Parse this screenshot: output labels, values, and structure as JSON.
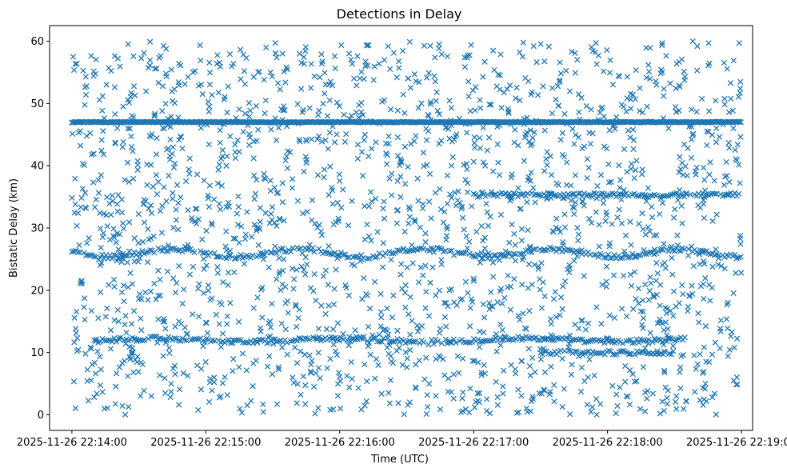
{
  "chart_data": {
    "type": "scatter",
    "title": "Detections in Delay",
    "xlabel": "Time (UTC)",
    "ylabel": "Bistatic Delay (km)",
    "marker": "x",
    "color": "#1f77b4",
    "grid": false,
    "x_ticks": [
      "2025-11-26 22:14:00",
      "2025-11-26 22:15:00",
      "2025-11-26 22:16:00",
      "2025-11-26 22:17:00",
      "2025-11-26 22:18:00",
      "2025-11-26 22:19:00"
    ],
    "y_ticks": [
      0,
      10,
      20,
      30,
      40,
      50,
      60
    ],
    "xlim": [
      "2025-11-26 22:13:50",
      "2025-11-26 22:19:05"
    ],
    "ylim": [
      -2.5,
      62.5
    ],
    "data_x_range": [
      "2025-11-26 22:14:00",
      "2025-11-26 22:19:00"
    ],
    "tracks": [
      {
        "delay_km": 47.0,
        "from": "2025-11-26 22:14:00",
        "to": "2025-11-26 22:19:00"
      },
      {
        "delay_km": 35.3,
        "from": "2025-11-26 22:17:00",
        "to": "2025-11-26 22:19:00"
      },
      {
        "delay_km": 26.0,
        "from": "2025-11-26 22:14:00",
        "to": "2025-11-26 22:19:00"
      },
      {
        "delay_km": 12.0,
        "from": "2025-11-26 22:14:10",
        "to": "2025-11-26 22:18:35"
      },
      {
        "delay_km": 10.0,
        "from": "2025-11-26 22:17:30",
        "to": "2025-11-26 22:18:30"
      }
    ],
    "background_detections": {
      "y_range": [
        0,
        60
      ],
      "approx_count": 2000
    }
  }
}
